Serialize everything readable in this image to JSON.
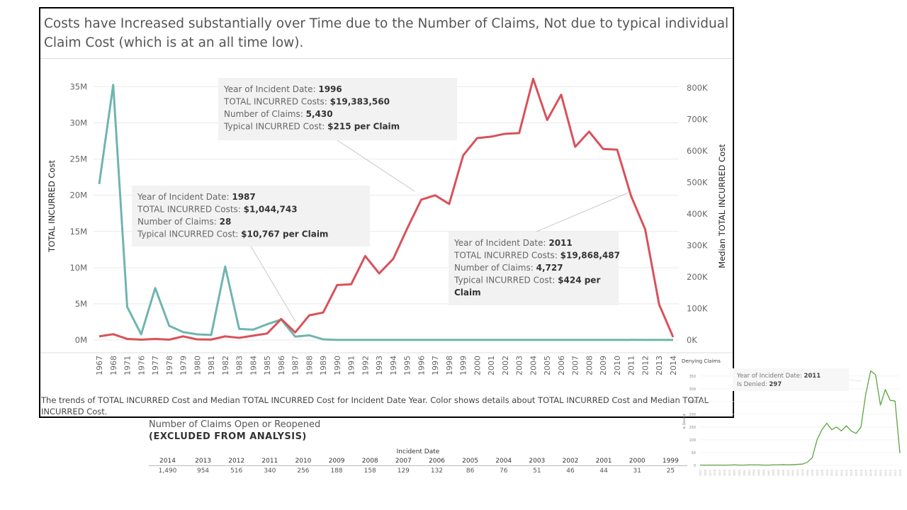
{
  "title": "Costs have Increased substantially over Time due to the Number of Claims, Not due to typical individual Claim Cost (which is at an all time low).",
  "caption": "The trends of TOTAL INCURRED Cost and Median TOTAL INCURRED Cost for Incident Date Year.  Color shows details about TOTAL INCURRED Cost and Median TOTAL INCURRED Cost.",
  "colors": {
    "total": "#d9515a",
    "median": "#6fb5af",
    "denied": "#5aa63f",
    "grid": "#e9e9e9",
    "tooltip_bg": "#f2f2f2"
  },
  "chart_data": [
    {
      "type": "line",
      "xlabel": "",
      "ylabel": "TOTAL INCURRED Cost",
      "y2label": "Median TOTAL INCURRED Cost",
      "ylim": [
        0,
        37000000
      ],
      "y2lim": [
        0,
        850000
      ],
      "yticks": [
        "0M",
        "5M",
        "10M",
        "15M",
        "20M",
        "25M",
        "30M",
        "35M"
      ],
      "y2ticks": [
        "0K",
        "100K",
        "200K",
        "300K",
        "400K",
        "500K",
        "600K",
        "700K",
        "800K"
      ],
      "x": [
        "1967",
        "1968",
        "1971",
        "1976",
        "1977",
        "1978",
        "1979",
        "1980",
        "1981",
        "1982",
        "1983",
        "1984",
        "1985",
        "1986",
        "1987",
        "1988",
        "1989",
        "1990",
        "1991",
        "1992",
        "1993",
        "1994",
        "1995",
        "1996",
        "1997",
        "1998",
        "1999",
        "2000",
        "2001",
        "2002",
        "2003",
        "2004",
        "2005",
        "2006",
        "2007",
        "2008",
        "2009",
        "2010",
        "2011",
        "2012",
        "2013",
        "2014"
      ],
      "series": [
        {
          "name": "TOTAL INCURRED Cost",
          "axis": "left",
          "values": [
            500000,
            800000,
            150000,
            50000,
            150000,
            50000,
            500000,
            80000,
            60000,
            500000,
            300000,
            600000,
            900000,
            2900000,
            1044743,
            3400000,
            3800000,
            7600000,
            7700000,
            11600000,
            9200000,
            11200000,
            15400000,
            19383560,
            20000000,
            18800000,
            25500000,
            27900000,
            28100000,
            28500000,
            28600000,
            36100000,
            30400000,
            33900000,
            26700000,
            28800000,
            26400000,
            26300000,
            19868487,
            15300000,
            4900000,
            400000
          ]
        },
        {
          "name": "Median TOTAL INCURRED Cost",
          "axis": "right",
          "values": [
            495000,
            810000,
            105000,
            18000,
            165000,
            45000,
            25000,
            18000,
            16000,
            233000,
            35000,
            33000,
            50000,
            65000,
            10767,
            15000,
            2000,
            300,
            300,
            300,
            300,
            300,
            300,
            215,
            300,
            300,
            300,
            300,
            300,
            300,
            300,
            300,
            300,
            300,
            300,
            300,
            300,
            300,
            424,
            300,
            300,
            300
          ]
        }
      ],
      "tooltips": [
        {
          "label_year": "Year of Incident Date: ",
          "year": "1996",
          "label_cost": "TOTAL INCURRED Costs: ",
          "cost": "$19,383,560",
          "label_claims": "Number of Claims: ",
          "claims": "5,430",
          "label_typical": "Typical INCURRED Cost: ",
          "typical": "$215 per Claim"
        },
        {
          "label_year": "Year of Incident Date: ",
          "year": "1987",
          "label_cost": "TOTAL INCURRED Costs: ",
          "cost": "$1,044,743",
          "label_claims": "Number of Claims: ",
          "claims": "28",
          "label_typical": "Typical INCURRED Cost: ",
          "typical": "$10,767 per Claim"
        },
        {
          "label_year": "Year of Incident Date: ",
          "year": "2011",
          "label_cost": "TOTAL INCURRED Costs: ",
          "cost": "$19,868,487",
          "label_claims": "Number of Claims: ",
          "claims": "4,727",
          "label_typical": "Typical INCURRED Cost: ",
          "typical": "$424 per Claim"
        }
      ]
    },
    {
      "type": "table",
      "title": "Number of Claims Open or Reopened",
      "subtitle": "(EXCLUDED FROM ANALYSIS)",
      "column_header": "Incident Date",
      "categories": [
        "2014",
        "2013",
        "2012",
        "2011",
        "2010",
        "2009",
        "2008",
        "2007",
        "2006",
        "2005",
        "2004",
        "2003",
        "2002",
        "2001",
        "2000",
        "1999"
      ],
      "values": [
        1490,
        954,
        516,
        340,
        256,
        188,
        158,
        129,
        132,
        86,
        76,
        51,
        46,
        44,
        31,
        25
      ],
      "value_labels": [
        "1,490",
        "954",
        "516",
        "340",
        "256",
        "188",
        "158",
        "129",
        "132",
        "86",
        "76",
        "51",
        "46",
        "44",
        "31",
        "25"
      ]
    },
    {
      "type": "line",
      "title": "Denying Claims",
      "ylabel": "Is Denied",
      "ylim": [
        0,
        380
      ],
      "yticks": [
        "0",
        "50",
        "100",
        "150",
        "200",
        "250",
        "300",
        "350"
      ],
      "x": [
        "1967",
        "1968",
        "1971",
        "1976",
        "1977",
        "1978",
        "1979",
        "1980",
        "1981",
        "1982",
        "1983",
        "1984",
        "1985",
        "1986",
        "1987",
        "1988",
        "1989",
        "1990",
        "1991",
        "1992",
        "1993",
        "1994",
        "1995",
        "1996",
        "1997",
        "1998",
        "1999",
        "2000",
        "2001",
        "2002",
        "2003",
        "2004",
        "2005",
        "2006",
        "2007",
        "2008",
        "2009",
        "2010",
        "2011",
        "2012",
        "2013",
        "2014"
      ],
      "series": [
        {
          "name": "Is Denied",
          "values": [
            1,
            1,
            1,
            1,
            1,
            1,
            1,
            2,
            1,
            1,
            2,
            2,
            2,
            1,
            1,
            2,
            2,
            3,
            2,
            3,
            4,
            5,
            12,
            30,
            100,
            140,
            165,
            140,
            150,
            135,
            155,
            135,
            125,
            150,
            280,
            370,
            355,
            236,
            297,
            255,
            252,
            48
          ]
        }
      ],
      "tooltip": {
        "label_year": "Year of Incident Date: ",
        "year": "2011",
        "label_denied": "Is Denied: ",
        "denied": "297"
      }
    }
  ]
}
